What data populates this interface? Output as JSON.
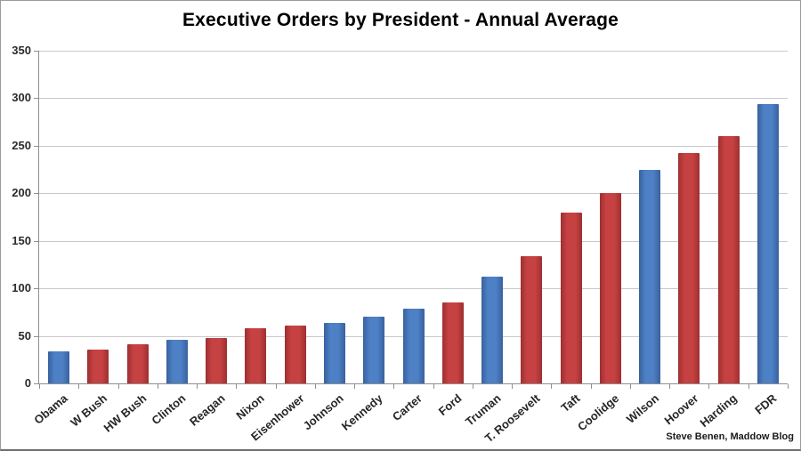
{
  "chart": {
    "title": "Executive Orders by President - Annual Average",
    "source_credit": "Steve Benen, Maddow Blog"
  },
  "chart_data": {
    "type": "bar",
    "title": "Executive Orders by President - Annual Average",
    "categories": [
      "Obama",
      "W Bush",
      "HW Bush",
      "Clinton",
      "Reagan",
      "Nixon",
      "Eisenhower",
      "Johnson",
      "Kennedy",
      "Carter",
      "Ford",
      "Truman",
      "T. Roosevelt",
      "Taft",
      "Coolidge",
      "Wilson",
      "Hoover",
      "Harding",
      "FDR"
    ],
    "values": [
      34,
      36,
      41,
      46,
      48,
      58,
      61,
      64,
      70,
      79,
      85,
      112,
      134,
      180,
      200,
      225,
      242,
      260,
      294
    ],
    "bar_party": [
      "D",
      "R",
      "R",
      "D",
      "R",
      "R",
      "R",
      "D",
      "D",
      "D",
      "R",
      "D",
      "R",
      "R",
      "R",
      "D",
      "R",
      "R",
      "D"
    ],
    "party_colors": {
      "D": {
        "main": "#4D80C4",
        "edge": "#38619F"
      },
      "R": {
        "main": "#C64242",
        "edge": "#9E2F31"
      }
    },
    "xlabel": "",
    "ylabel": "",
    "ylim": [
      0,
      350
    ],
    "ytick_step": 50,
    "yticklabels": [
      "0",
      "50",
      "100",
      "150",
      "200",
      "250",
      "300",
      "350"
    ],
    "grid": true,
    "legend": "none",
    "annotations": [
      "Steve Benen, Maddow Blog"
    ]
  }
}
